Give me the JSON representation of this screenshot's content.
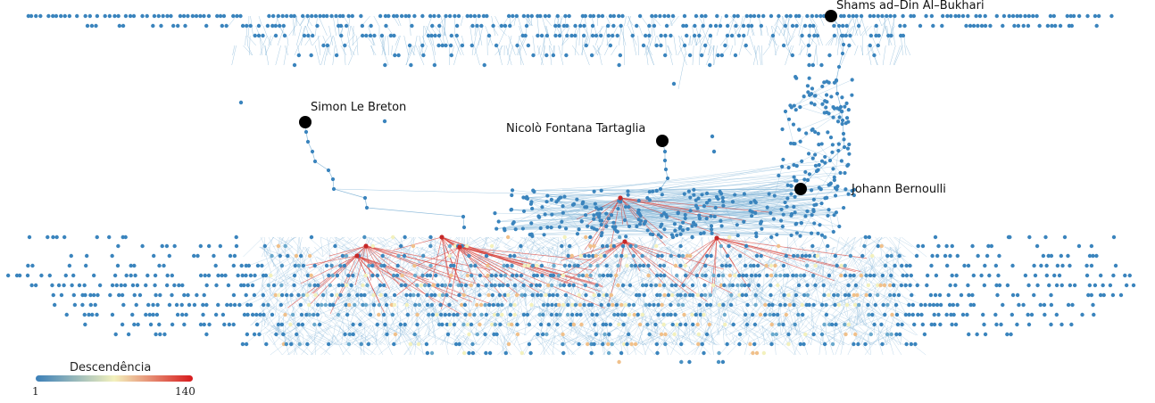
{
  "labeled_nodes": [
    {
      "id": "al-bukhari",
      "label": "Shams ad–Din Al–Bukhari"
    },
    {
      "id": "le-breton",
      "label": "Simon Le Breton"
    },
    {
      "id": "tartaglia",
      "label": "Nicolò Fontana Tartaglia"
    },
    {
      "id": "bernoulli",
      "label": "Johann Bernoulli"
    }
  ],
  "legend": {
    "title": "Descendência",
    "min_label": "1",
    "max_label": "140",
    "min_value": 1,
    "max_value": 140
  },
  "colors": {
    "low": "#3b7fb8",
    "mid": "#f3f1bd",
    "high": "#d7191c",
    "node_default": "#3a84bd",
    "edge_default": "#7fb2d6",
    "labeled_node": "#000000"
  }
}
